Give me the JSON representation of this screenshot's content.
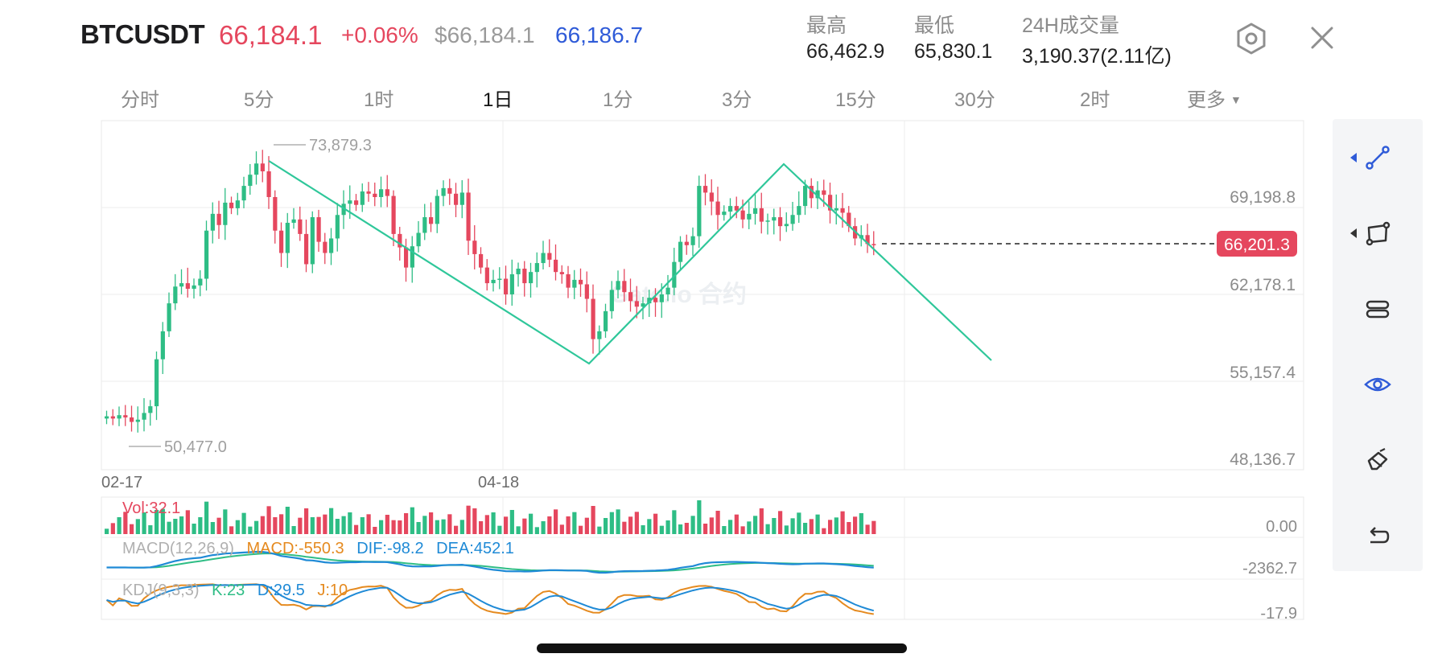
{
  "header": {
    "symbol": "BTCUSDT",
    "last_price": "66,184.1",
    "change_pct": "+0.06%",
    "usd_price": "$66,184.1",
    "mark_price": "66,186.7",
    "stats": [
      {
        "label": "最高",
        "value": "66,462.9"
      },
      {
        "label": "最低",
        "value": "65,830.1"
      },
      {
        "label": "24H成交量",
        "value": "3,190.37(2.11亿)"
      }
    ],
    "settings_icon": "hexagon-settings-icon",
    "close_icon": "close-icon"
  },
  "tabs": [
    {
      "label": "分时",
      "active": false
    },
    {
      "label": "5分",
      "active": false
    },
    {
      "label": "1时",
      "active": false
    },
    {
      "label": "1日",
      "active": true
    },
    {
      "label": "1分",
      "active": false
    },
    {
      "label": "3分",
      "active": false
    },
    {
      "label": "15分",
      "active": false
    },
    {
      "label": "30分",
      "active": false
    },
    {
      "label": "2时",
      "active": false
    },
    {
      "label": "更多",
      "active": false
    }
  ],
  "chart": {
    "price_axis": [
      "69,198.8",
      "62,178.1",
      "55,157.4",
      "48,136.7"
    ],
    "date_labels": [
      "02-17",
      "04-18"
    ],
    "high_marker": "73,879.3",
    "low_marker": "50,477.0",
    "current_price_tag": "66,201.3",
    "watermark": "Gate.io 合约",
    "colors": {
      "up": "#2ebd85",
      "down": "#e5475e",
      "drawing": "#2fc79a",
      "dif": "#1f8ad6",
      "k_line": "#e58a1f"
    },
    "volume_label": "Vol:32.1",
    "volume_axis": "0.00",
    "macd": {
      "label": "MACD(12,26,9)",
      "macd": "MACD:-550.3",
      "dif": "DIF:-98.2",
      "dea": "DEA:452.1",
      "axis": "-2362.7"
    },
    "kdj": {
      "label": "KDJ(9,3,3)",
      "k": "K:23",
      "d": "D:29.5",
      "j": "J:10",
      "axis": "-17.9"
    }
  },
  "chart_data": {
    "type": "candlestick",
    "interval": "1日",
    "x_start": "02-17",
    "y_range": [
      48136.7,
      73879.3
    ],
    "current": 66201.3,
    "closes": [
      50900,
      50700,
      51000,
      50800,
      50400,
      50600,
      51200,
      51800,
      56000,
      58500,
      61000,
      62500,
      62800,
      62300,
      62600,
      63200,
      67500,
      69000,
      68000,
      70000,
      69500,
      70200,
      71500,
      72500,
      73500,
      72800,
      70500,
      67500,
      65500,
      68200,
      68500,
      67200,
      64500,
      68700,
      66500,
      65500,
      66800,
      68900,
      69900,
      70200,
      69800,
      71000,
      70800,
      70500,
      71200,
      70600,
      67200,
      66000,
      64200,
      66100,
      67300,
      68700,
      68100,
      70600,
      71300,
      70800,
      69800,
      70900,
      66600,
      65400,
      64200,
      62800,
      63100,
      63200,
      61800,
      63600,
      64100,
      62800,
      63800,
      64600,
      65500,
      64900,
      63800,
      63600,
      62400,
      63100,
      62700,
      61400,
      57800,
      58500,
      60300,
      62200,
      63000,
      62000,
      61200,
      60700,
      61000,
      61500,
      61100,
      61800,
      62400,
      64700,
      66500,
      66200,
      67000,
      71500,
      70900,
      70100,
      68900,
      69200,
      69700,
      69300,
      68500,
      69000,
      69500,
      68300,
      68400,
      68700,
      67900,
      68100,
      68900,
      69700,
      71500,
      70400,
      71100,
      70700,
      69300,
      69500,
      69100,
      67900,
      66800,
      67100,
      66300,
      66200
    ]
  },
  "toolbar": {
    "tools": [
      {
        "icon": "trendline-icon",
        "active": true
      },
      {
        "icon": "rectangle-shape-icon",
        "active": false
      },
      {
        "icon": "channel-icon",
        "active": false
      },
      {
        "icon": "eye-icon",
        "active": true
      },
      {
        "icon": "eraser-icon",
        "active": false
      },
      {
        "icon": "undo-icon",
        "active": false
      }
    ]
  }
}
